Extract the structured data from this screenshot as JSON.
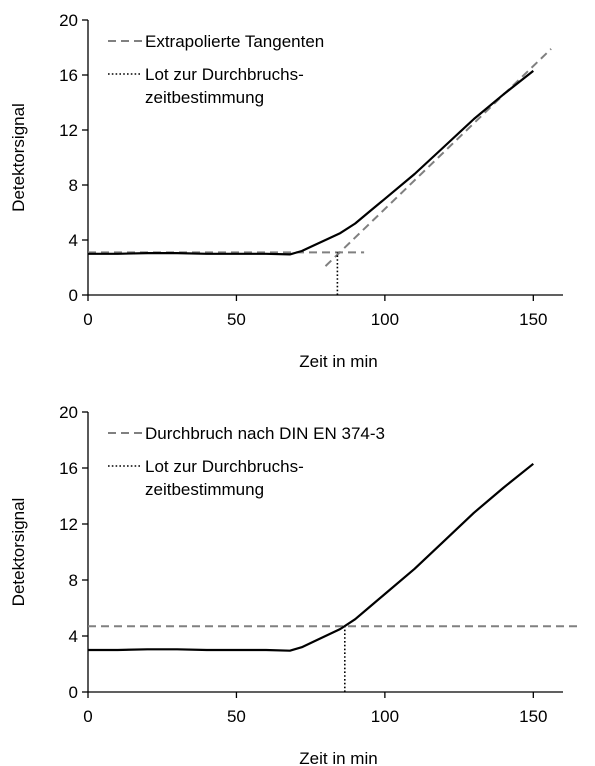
{
  "chart_data": [
    {
      "type": "line",
      "xlabel": "Zeit in min",
      "ylabel": "Detektorsignal",
      "xlim": [
        0,
        160
      ],
      "ylim": [
        0,
        20
      ],
      "x_ticks": [
        0,
        50,
        100,
        150
      ],
      "y_ticks": [
        0,
        4,
        8,
        12,
        16,
        20
      ],
      "x_tick_labels": [
        "0",
        "50",
        "100",
        "150"
      ],
      "y_tick_labels": [
        "0",
        "4",
        "8",
        "12",
        "16",
        "20"
      ],
      "grid": false,
      "legend_placement": "top-left",
      "legend": [
        {
          "label": "Extrapolierte Tangenten",
          "style": "dashed"
        },
        {
          "label": "Lot zur Durchbruchs-",
          "label_line2": "zeitbestimmung",
          "style": "dotted"
        }
      ],
      "series": [
        {
          "style": "solid",
          "color": "#000000",
          "x": [
            0,
            10,
            20,
            30,
            40,
            50,
            60,
            68,
            72,
            76,
            80,
            85,
            90,
            95,
            100,
            110,
            120,
            130,
            140,
            150
          ],
          "y": [
            3.0,
            3.0,
            3.05,
            3.05,
            3.0,
            3.0,
            3.0,
            2.95,
            3.2,
            3.6,
            4.0,
            4.5,
            5.2,
            6.1,
            7.0,
            8.8,
            10.8,
            12.8,
            14.6,
            16.3
          ]
        },
        {
          "style": "dashed",
          "color": "#808080",
          "x": [
            0,
            93
          ],
          "y": [
            3.1,
            3.1
          ]
        },
        {
          "style": "dashed",
          "color": "#808080",
          "x": [
            80,
            156
          ],
          "y": [
            2.1,
            17.9
          ]
        },
        {
          "style": "dotted",
          "color": "#000000",
          "x": [
            84,
            84
          ],
          "y": [
            0,
            3.1
          ]
        }
      ]
    },
    {
      "type": "line",
      "xlabel": "Zeit in min",
      "ylabel": "Detektorsignal",
      "xlim": [
        0,
        160
      ],
      "ylim": [
        0,
        20
      ],
      "x_ticks": [
        0,
        50,
        100,
        150
      ],
      "y_ticks": [
        0,
        4,
        8,
        12,
        16,
        20
      ],
      "x_tick_labels": [
        "0",
        "50",
        "100",
        "150"
      ],
      "y_tick_labels": [
        "0",
        "4",
        "8",
        "12",
        "16",
        "20"
      ],
      "grid": false,
      "legend_placement": "top-left",
      "legend": [
        {
          "label": "Durchbruch nach DIN EN 374-3",
          "style": "dashed"
        },
        {
          "label": "Lot zur Durchbruchs-",
          "label_line2": "zeitbestimmung",
          "style": "dotted"
        }
      ],
      "series": [
        {
          "style": "solid",
          "color": "#000000",
          "x": [
            0,
            10,
            20,
            30,
            40,
            50,
            60,
            68,
            72,
            76,
            80,
            85,
            90,
            95,
            100,
            110,
            120,
            130,
            140,
            150
          ],
          "y": [
            3.0,
            3.0,
            3.05,
            3.05,
            3.0,
            3.0,
            3.0,
            2.95,
            3.2,
            3.6,
            4.0,
            4.5,
            5.2,
            6.1,
            7.0,
            8.8,
            10.8,
            12.8,
            14.6,
            16.3
          ]
        },
        {
          "style": "dashed",
          "color": "#808080",
          "x": [
            0,
            165
          ],
          "y": [
            4.7,
            4.7
          ]
        },
        {
          "style": "dotted",
          "color": "#000000",
          "x": [
            86.5,
            86.5
          ],
          "y": [
            0,
            4.7
          ]
        }
      ]
    }
  ]
}
